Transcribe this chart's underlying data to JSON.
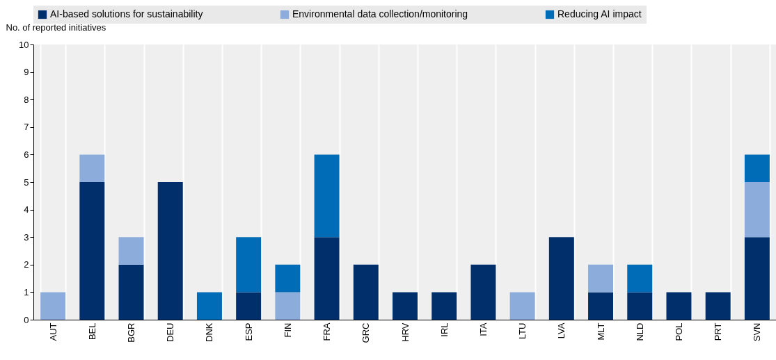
{
  "chart_data": {
    "type": "bar",
    "stacked": true,
    "ylabel": "No. of reported initiatives",
    "categories": [
      "AUT",
      "BEL",
      "BGR",
      "DEU",
      "DNK",
      "ESP",
      "FIN",
      "FRA",
      "GRC",
      "HRV",
      "IRL",
      "ITA",
      "LTU",
      "LVA",
      "MLT",
      "NLD",
      "POL",
      "PRT",
      "SVN"
    ],
    "series": [
      {
        "name": "AI-based solutions for sustainability",
        "color": "#002f6c",
        "values": [
          0,
          5,
          2,
          5,
          0,
          1,
          0,
          3,
          2,
          1,
          1,
          2,
          0,
          3,
          1,
          1,
          1,
          1,
          3
        ]
      },
      {
        "name": "Environmental data collection/monitoring",
        "color": "#8caddc",
        "values": [
          1,
          1,
          1,
          0,
          0,
          0,
          1,
          0,
          0,
          0,
          0,
          0,
          1,
          0,
          1,
          0,
          0,
          0,
          2
        ]
      },
      {
        "name": "Reducing AI impact",
        "color": "#006bb6",
        "values": [
          0,
          0,
          0,
          0,
          1,
          2,
          1,
          3,
          0,
          0,
          0,
          0,
          0,
          0,
          0,
          1,
          0,
          0,
          1
        ]
      }
    ],
    "ylim": [
      0,
      10
    ],
    "yticks": [
      0,
      1,
      2,
      3,
      4,
      5,
      6,
      7,
      8,
      9,
      10
    ],
    "grid": "x",
    "legend": "top"
  }
}
